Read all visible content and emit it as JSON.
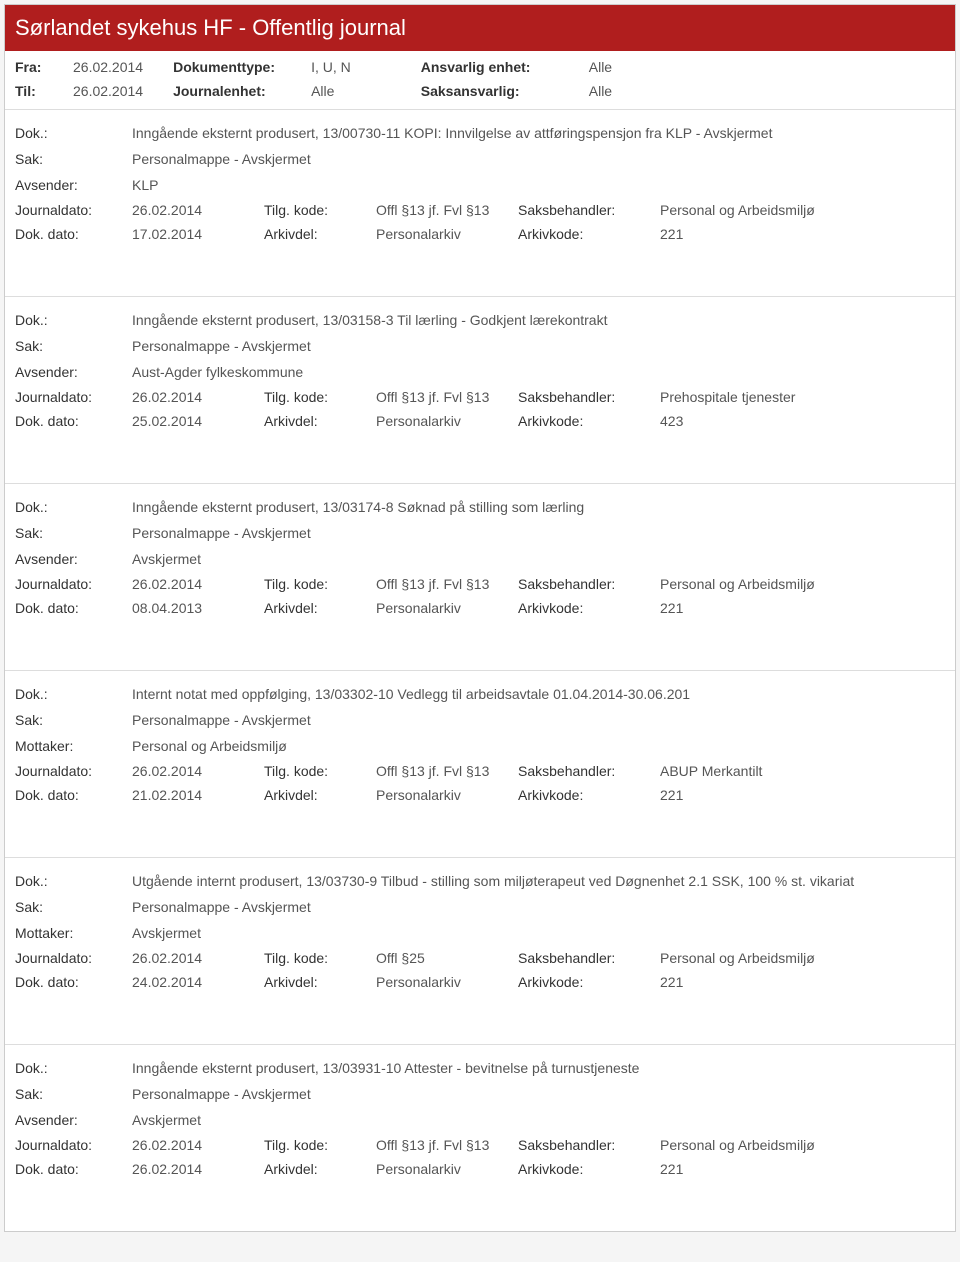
{
  "colors": {
    "header_bg": "#b01e1e",
    "header_text": "#ffffff",
    "body_text": "#333333",
    "value_text": "#555555",
    "border": "#dddddd",
    "page_bg": "#ffffff"
  },
  "typography": {
    "font_family": "Segoe UI, Arial, sans-serif",
    "title_fontsize": 22,
    "body_fontsize": 14
  },
  "header": {
    "title": "Sørlandet sykehus HF - Offentlig journal"
  },
  "filters": {
    "fra_label": "Fra:",
    "fra_value": "26.02.2014",
    "til_label": "Til:",
    "til_value": "26.02.2014",
    "dokumenttype_label": "Dokumenttype:",
    "dokumenttype_value": "I, U, N",
    "journalenhet_label": "Journalenhet:",
    "journalenhet_value": "Alle",
    "ansvarlig_label": "Ansvarlig enhet:",
    "ansvarlig_value": "Alle",
    "saksansvarlig_label": "Saksansvarlig:",
    "saksansvarlig_value": "Alle"
  },
  "labels": {
    "dok": "Dok.:",
    "sak": "Sak:",
    "avsender": "Avsender:",
    "mottaker": "Mottaker:",
    "journaldato": "Journaldato:",
    "dokdato": "Dok. dato:",
    "tilgkode": "Tilg. kode:",
    "arkivdel": "Arkivdel:",
    "saksbehandler": "Saksbehandler:",
    "arkivkode": "Arkivkode:"
  },
  "entries": [
    {
      "dok": "Inngående eksternt produsert, 13/00730-11 KOPI: Innvilgelse av attføringspensjon fra KLP - Avskjermet",
      "sak": "Personalmappe - Avskjermet",
      "party_label": "Avsender:",
      "party_value": "KLP",
      "journaldato": "26.02.2014",
      "tilgkode": "Offl §13 jf. Fvl §13",
      "saksbehandler": "Personal og Arbeidsmiljø",
      "dokdato": "17.02.2014",
      "arkivdel": "Personalarkiv",
      "arkivkode": "221"
    },
    {
      "dok": "Inngående eksternt produsert, 13/03158-3 Til lærling - Godkjent lærekontrakt",
      "sak": "Personalmappe - Avskjermet",
      "party_label": "Avsender:",
      "party_value": "Aust-Agder fylkeskommune",
      "journaldato": "26.02.2014",
      "tilgkode": "Offl §13 jf. Fvl §13",
      "saksbehandler": "Prehospitale tjenester",
      "dokdato": "25.02.2014",
      "arkivdel": "Personalarkiv",
      "arkivkode": "423"
    },
    {
      "dok": "Inngående eksternt produsert, 13/03174-8 Søknad på stilling som lærling",
      "sak": "Personalmappe - Avskjermet",
      "party_label": "Avsender:",
      "party_value": "Avskjermet",
      "journaldato": "26.02.2014",
      "tilgkode": "Offl §13 jf. Fvl §13",
      "saksbehandler": "Personal og Arbeidsmiljø",
      "dokdato": "08.04.2013",
      "arkivdel": "Personalarkiv",
      "arkivkode": "221"
    },
    {
      "dok": "Internt notat med oppfølging, 13/03302-10 Vedlegg til arbeidsavtale 01.04.2014-30.06.201",
      "sak": "Personalmappe - Avskjermet",
      "party_label": "Mottaker:",
      "party_value": "Personal og Arbeidsmiljø",
      "journaldato": "26.02.2014",
      "tilgkode": "Offl §13 jf. Fvl §13",
      "saksbehandler": "ABUP Merkantilt",
      "dokdato": "21.02.2014",
      "arkivdel": "Personalarkiv",
      "arkivkode": "221"
    },
    {
      "dok": "Utgående internt produsert, 13/03730-9 Tilbud - stilling som miljøterapeut ved Døgnenhet 2.1 SSK, 100 % st. vikariat",
      "sak": "Personalmappe - Avskjermet",
      "party_label": "Mottaker:",
      "party_value": "Avskjermet",
      "journaldato": "26.02.2014",
      "tilgkode": "Offl §25",
      "saksbehandler": "Personal og Arbeidsmiljø",
      "dokdato": "24.02.2014",
      "arkivdel": "Personalarkiv",
      "arkivkode": "221"
    },
    {
      "dok": "Inngående eksternt produsert, 13/03931-10 Attester - bevitnelse på turnustjeneste",
      "sak": "Personalmappe - Avskjermet",
      "party_label": "Avsender:",
      "party_value": "Avskjermet",
      "journaldato": "26.02.2014",
      "tilgkode": "Offl §13 jf. Fvl §13",
      "saksbehandler": "Personal og Arbeidsmiljø",
      "dokdato": "26.02.2014",
      "arkivdel": "Personalarkiv",
      "arkivkode": "221"
    }
  ]
}
